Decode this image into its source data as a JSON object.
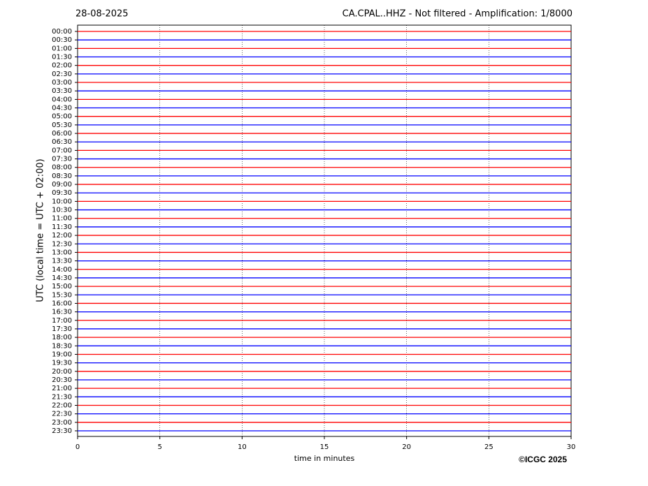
{
  "chart_data": {
    "type": "helicorder",
    "date": "28-08-2025",
    "title": "CA.CPAL..HHZ - Not filtered - Amplification: 1/8000",
    "ylabel": "UTC (local time = UTC + 02:00)",
    "xlabel": "time in minutes",
    "credit": "©ICGC 2025",
    "categories": [
      "00:00",
      "00:30",
      "01:00",
      "01:30",
      "02:00",
      "02:30",
      "03:00",
      "03:30",
      "04:00",
      "04:30",
      "05:00",
      "05:30",
      "06:00",
      "06:30",
      "07:00",
      "07:30",
      "08:00",
      "08:30",
      "09:00",
      "09:30",
      "10:00",
      "10:30",
      "11:00",
      "11:30",
      "12:00",
      "12:30",
      "13:00",
      "13:30",
      "14:00",
      "14:30",
      "15:00",
      "15:30",
      "16:00",
      "16:30",
      "17:00",
      "17:30",
      "18:00",
      "18:30",
      "19:00",
      "19:30",
      "20:00",
      "20:30",
      "21:00",
      "21:30",
      "22:00",
      "22:30",
      "23:00",
      "23:30"
    ],
    "trace_colors": [
      "#ff0000",
      "#0000ff"
    ],
    "xlim": [
      0,
      30
    ],
    "xticks": [
      0,
      5,
      10,
      15,
      20,
      25,
      30
    ],
    "grid": true
  }
}
